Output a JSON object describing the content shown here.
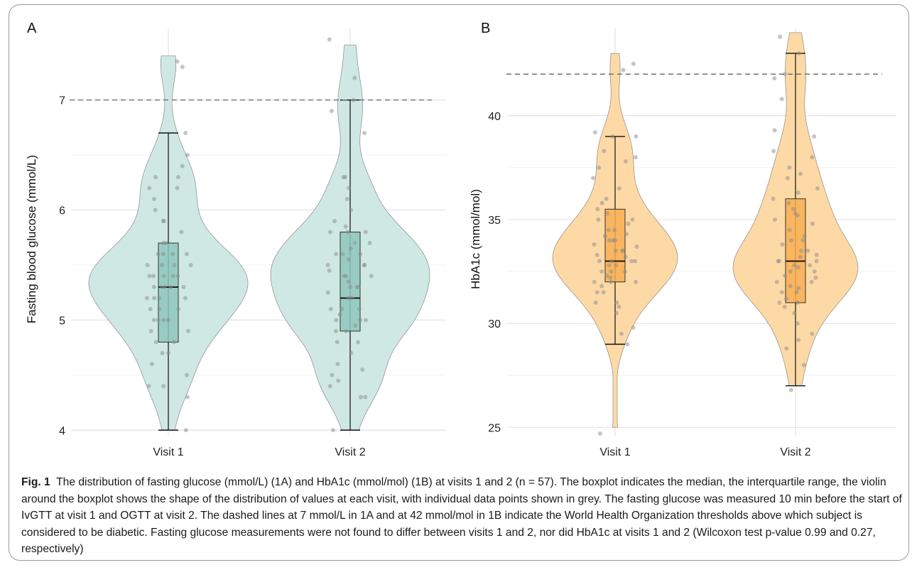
{
  "chart_data": [
    {
      "panel": "A",
      "type": "violin",
      "ylabel": "Fasting blood glucose (mmol/L)",
      "xlabel": "",
      "categories": [
        "Visit 1",
        "Visit 2"
      ],
      "yticks": [
        4,
        5,
        6,
        7
      ],
      "ylim": [
        3.95,
        7.65
      ],
      "grid": true,
      "reference_line": {
        "value": 7,
        "style": "dashed"
      },
      "fill_color": "#cfe8e3",
      "box_color": "#8ec7bc",
      "series": [
        {
          "category": "Visit 1",
          "box": {
            "min": 4.0,
            "q1": 4.8,
            "median": 5.3,
            "q3": 5.7,
            "max": 6.7
          },
          "violin_max": 7.4,
          "points": [
            4.0,
            4.3,
            4.4,
            4.4,
            4.5,
            4.6,
            4.7,
            4.7,
            4.8,
            4.8,
            4.9,
            4.9,
            5.0,
            5.0,
            5.0,
            5.0,
            5.1,
            5.1,
            5.1,
            5.2,
            5.2,
            5.2,
            5.2,
            5.3,
            5.3,
            5.3,
            5.3,
            5.3,
            5.4,
            5.4,
            5.4,
            5.4,
            5.4,
            5.5,
            5.5,
            5.5,
            5.5,
            5.6,
            5.6,
            5.6,
            5.6,
            5.7,
            5.7,
            5.8,
            5.9,
            5.9,
            6.0,
            6.1,
            6.2,
            6.2,
            6.3,
            6.3,
            6.4,
            6.5,
            6.7,
            7.3,
            7.35
          ]
        },
        {
          "category": "Visit 2",
          "box": {
            "min": 4.0,
            "q1": 4.9,
            "median": 5.2,
            "q3": 5.8,
            "max": 7.0
          },
          "violin_max": 7.5,
          "points": [
            4.0,
            4.3,
            4.3,
            4.4,
            4.45,
            4.5,
            4.55,
            4.6,
            4.7,
            4.8,
            4.8,
            4.9,
            4.9,
            4.95,
            5.0,
            5.0,
            5.0,
            5.05,
            5.1,
            5.1,
            5.1,
            5.2,
            5.2,
            5.25,
            5.3,
            5.3,
            5.3,
            5.35,
            5.4,
            5.4,
            5.4,
            5.45,
            5.5,
            5.5,
            5.5,
            5.55,
            5.6,
            5.6,
            5.6,
            5.7,
            5.7,
            5.8,
            5.8,
            5.8,
            5.85,
            5.9,
            6.0,
            6.1,
            6.2,
            6.3,
            6.3,
            6.7,
            6.9,
            7.0,
            7.2,
            7.55,
            5.65
          ]
        }
      ]
    },
    {
      "panel": "B",
      "type": "violin",
      "ylabel": "HbA1c (mmol/mol)",
      "xlabel": "",
      "categories": [
        "Visit 1",
        "Visit 2"
      ],
      "yticks": [
        25,
        30,
        35,
        40
      ],
      "ylim": [
        24.6,
        44.2
      ],
      "grid": true,
      "reference_line": {
        "value": 42,
        "style": "dashed"
      },
      "fill_color": "#fdd9a6",
      "box_color": "#f8ae52",
      "series": [
        {
          "category": "Visit 1",
          "box": {
            "min": 29,
            "q1": 32,
            "median": 33,
            "q3": 35.5,
            "max": 39
          },
          "violin_min": 25,
          "violin_max": 43,
          "points": [
            24.7,
            29.0,
            29.5,
            29.8,
            30.5,
            30.8,
            31.0,
            31.0,
            31.5,
            31.5,
            31.8,
            32.0,
            32.0,
            32.0,
            32.2,
            32.5,
            32.5,
            32.5,
            32.8,
            32.8,
            33.0,
            33.0,
            33.0,
            33.0,
            33.2,
            33.3,
            33.5,
            33.5,
            33.5,
            33.8,
            34.0,
            34.0,
            34.0,
            34.2,
            34.5,
            34.5,
            34.8,
            35.0,
            35.0,
            35.3,
            35.5,
            35.8,
            36.0,
            36.5,
            37.0,
            37.5,
            37.8,
            38.0,
            38.3,
            39.0,
            39.0,
            39.2,
            42.2,
            42.5,
            33.7,
            32.3,
            34.3
          ]
        },
        {
          "category": "Visit 2",
          "box": {
            "min": 27,
            "q1": 31,
            "median": 33,
            "q3": 36,
            "max": 43
          },
          "violin_min": 27,
          "violin_max": 44,
          "points": [
            26.8,
            28.0,
            28.8,
            29.2,
            29.5,
            30.0,
            30.5,
            30.8,
            31.0,
            31.0,
            31.2,
            31.5,
            31.5,
            31.8,
            32.0,
            32.0,
            32.2,
            32.3,
            32.5,
            32.5,
            32.8,
            32.8,
            33.0,
            33.0,
            33.0,
            33.2,
            33.5,
            33.5,
            33.8,
            34.0,
            34.0,
            34.5,
            34.8,
            35.0,
            35.3,
            35.5,
            35.8,
            36.0,
            36.3,
            36.5,
            37.0,
            37.2,
            37.5,
            38.0,
            38.3,
            39.0,
            39.3,
            40.8,
            41.8,
            42.0,
            43.0,
            43.8,
            33.3,
            32.7,
            34.2,
            35.2,
            31.7
          ]
        }
      ]
    }
  ],
  "caption": {
    "label": "Fig. 1",
    "text": "The distribution of fasting glucose (mmol/L) (1A) and HbA1c (mmol/mol) (1B) at visits 1 and 2 (n = 57). The boxplot indicates the median, the interquartile range, the violin around the boxplot shows the shape of the distribution of values at each visit, with individual data points shown in grey. The fasting glucose was measured 10 min before the start of IvGTT at visit 1 and OGTT at visit 2. The dashed lines at 7 mmol/L in 1A and at 42 mmol/mol in 1B indicate the World Health Organization thresholds above which subject is considered to be diabetic. Fasting glucose measurements were not found to differ between visits 1 and 2, nor did HbA1c at visits 1 and 2 (Wilcoxon test p-value 0.99 and 0.27, respectively)"
  }
}
